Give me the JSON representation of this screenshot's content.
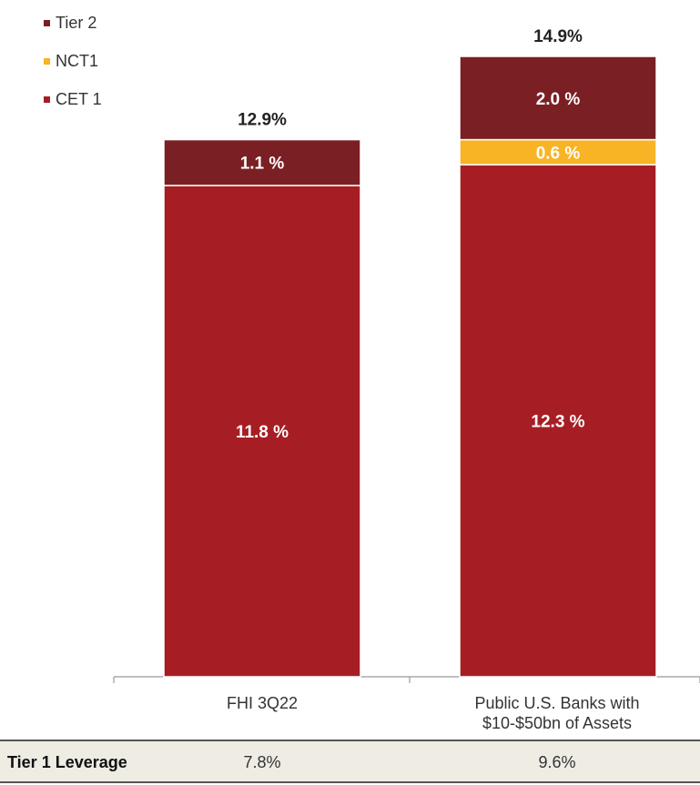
{
  "chart_data": {
    "type": "bar",
    "stacked": true,
    "categories": [
      "FHI 3Q22",
      "Public U.S. Banks with $10-$50bn of Assets"
    ],
    "series": [
      {
        "name": "CET 1",
        "color": "#a61e24",
        "values": [
          11.8,
          12.3
        ],
        "labels": [
          "11.8 %",
          "12.3 %"
        ]
      },
      {
        "name": "NCT1",
        "color": "#f8b424",
        "values": [
          0.0,
          0.6
        ],
        "labels": [
          "",
          "0.6 %"
        ]
      },
      {
        "name": "Tier 2",
        "color": "#7a1f24",
        "values": [
          1.1,
          2.0
        ],
        "labels": [
          "1.1 %",
          "2.0 %"
        ]
      }
    ],
    "totals": [
      "12.9%",
      "14.9%"
    ],
    "ylim": [
      0,
      14.9
    ],
    "legend_position": "top-left",
    "grid": false
  },
  "legend": {
    "items": [
      {
        "label": "Tier 2",
        "color": "#7a1f24"
      },
      {
        "label": "NCT1",
        "color": "#f8b424"
      },
      {
        "label": "CET 1",
        "color": "#a61e24"
      }
    ]
  },
  "category_labels": {
    "cat0": "FHI 3Q22",
    "cat1_line1": "Public U.S. Banks with",
    "cat1_line2": "$10-$50bn of Assets"
  },
  "leverage": {
    "title": "Tier 1 Leverage",
    "values": [
      "7.8%",
      "9.6%"
    ]
  }
}
